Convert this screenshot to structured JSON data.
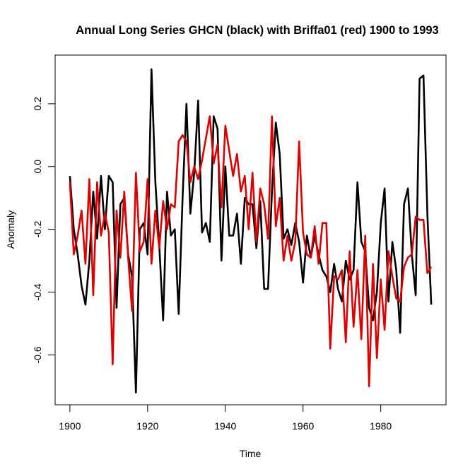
{
  "chart_data": {
    "type": "line",
    "title": "Annual Long Series GHCN (black) with Briffa01 (red) 1900 to 1993",
    "xlabel": "Time",
    "ylabel": "Anomaly",
    "xlim": [
      1896.2,
      1996.8
    ],
    "ylim": [
      -0.759,
      0.355
    ],
    "x_ticks": [
      1900,
      1920,
      1940,
      1960,
      1980
    ],
    "x_tick_labels": [
      "1900",
      "1920",
      "1940",
      "1960",
      "1980"
    ],
    "y_ticks": [
      0.2,
      0.0,
      -0.2,
      -0.4,
      -0.6
    ],
    "y_tick_labels": [
      "0.2",
      "0.0",
      "-0.2",
      "-0.4",
      "-0.6"
    ],
    "grid": false,
    "x_start": 1900,
    "series": [
      {
        "name": "GHCN",
        "color": "#000000",
        "values": [
          -0.03,
          -0.2,
          -0.28,
          -0.38,
          -0.44,
          -0.3,
          -0.08,
          -0.23,
          -0.03,
          -0.2,
          -0.03,
          -0.05,
          -0.45,
          -0.12,
          -0.1,
          -0.28,
          -0.35,
          -0.72,
          -0.2,
          -0.18,
          -0.28,
          0.31,
          -0.05,
          -0.25,
          -0.49,
          -0.08,
          -0.22,
          -0.2,
          -0.47,
          -0.1,
          0.2,
          -0.15,
          -0.02,
          0.21,
          -0.21,
          -0.18,
          -0.24,
          0.16,
          0.12,
          -0.3,
          0.0,
          -0.22,
          -0.22,
          -0.15,
          -0.31,
          -0.1,
          -0.12,
          -0.12,
          -0.26,
          -0.11,
          -0.39,
          -0.39,
          -0.08,
          0.14,
          0.04,
          -0.23,
          -0.2,
          -0.25,
          -0.18,
          -0.24,
          -0.37,
          -0.22,
          -0.29,
          -0.22,
          -0.28,
          -0.33,
          -0.35,
          -0.4,
          -0.31,
          -0.39,
          -0.43,
          -0.3,
          -0.36,
          -0.33,
          -0.05,
          -0.24,
          -0.27,
          -0.45,
          -0.49,
          -0.4,
          -0.18,
          -0.07,
          -0.43,
          -0.24,
          -0.33,
          -0.53,
          -0.12,
          -0.07,
          -0.28,
          -0.41,
          0.28,
          0.29,
          -0.15,
          -0.44
        ]
      },
      {
        "name": "Briffa01",
        "color": "#e00000",
        "values": [
          -0.05,
          -0.28,
          -0.22,
          -0.14,
          -0.31,
          -0.04,
          -0.41,
          -0.05,
          -0.22,
          -0.15,
          -0.21,
          -0.63,
          -0.14,
          -0.29,
          -0.08,
          -0.29,
          -0.46,
          -0.02,
          -0.27,
          -0.24,
          -0.04,
          -0.31,
          -0.14,
          -0.26,
          -0.11,
          -0.2,
          -0.12,
          -0.13,
          0.08,
          0.1,
          0.08,
          -0.05,
          0.0,
          -0.04,
          0.02,
          0.09,
          0.16,
          0.01,
          0.07,
          -0.13,
          0.13,
          0.05,
          -0.03,
          0.04,
          -0.08,
          -0.03,
          -0.2,
          -0.02,
          -0.24,
          -0.07,
          -0.12,
          -0.23,
          0.16,
          -0.19,
          -0.1,
          -0.3,
          -0.22,
          -0.3,
          -0.24,
          0.08,
          -0.21,
          -0.28,
          -0.29,
          -0.19,
          -0.31,
          -0.18,
          -0.18,
          -0.58,
          -0.35,
          -0.36,
          -0.33,
          -0.56,
          -0.27,
          -0.51,
          -0.33,
          -0.55,
          -0.22,
          -0.7,
          -0.31,
          -0.61,
          -0.36,
          -0.52,
          -0.27,
          -0.35,
          -0.42,
          -0.43,
          -0.32,
          -0.29,
          -0.28,
          -0.16,
          -0.17,
          -0.17,
          -0.34,
          -0.32
        ]
      }
    ]
  }
}
